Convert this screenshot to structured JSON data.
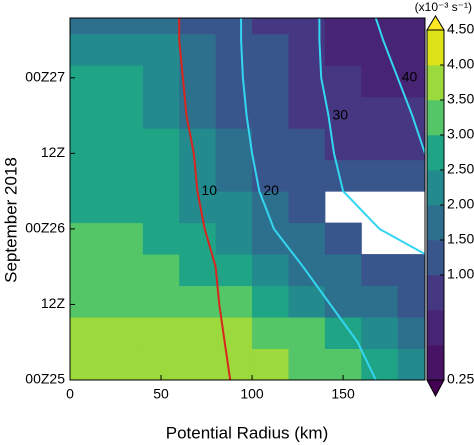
{
  "chart_data": {
    "type": "contour",
    "xlabel": "Potential Radius (km)",
    "ylabel": "September 2018",
    "colorbar_label": "(x10⁻³ s⁻¹)",
    "xlim": [
      0,
      195
    ],
    "xticks": [
      0,
      50,
      100,
      150
    ],
    "ylim": [
      0,
      57.5
    ],
    "yticks": [
      {
        "value": 0,
        "label": "00Z25"
      },
      {
        "value": 12,
        "label": "12Z"
      },
      {
        "value": 24,
        "label": "00Z26"
      },
      {
        "value": 36,
        "label": "12Z"
      },
      {
        "value": 48,
        "label": "00Z27"
      }
    ],
    "x_edges": [
      0,
      20,
      40,
      60,
      80,
      100,
      120,
      140,
      160,
      180,
      195
    ],
    "y_edges": [
      0,
      5,
      10,
      15,
      20,
      25,
      30,
      35,
      40,
      45,
      50,
      55,
      57.5
    ],
    "z": [
      [
        3.8,
        3.8,
        3.8,
        3.8,
        3.7,
        3.6,
        3.4,
        3.0,
        2.6,
        2.2
      ],
      [
        3.7,
        3.7,
        3.7,
        3.6,
        3.5,
        3.3,
        3.0,
        2.6,
        2.2,
        1.8
      ],
      [
        3.4,
        3.4,
        3.3,
        3.2,
        3.0,
        2.7,
        2.3,
        1.9,
        1.6,
        1.4
      ],
      [
        3.2,
        3.2,
        3.1,
        2.9,
        2.6,
        2.2,
        1.8,
        1.5,
        1.3,
        1.2
      ],
      [
        3.0,
        3.0,
        2.9,
        2.6,
        2.2,
        1.8,
        1.5,
        1.3,
        null,
        null
      ],
      [
        2.9,
        2.9,
        2.7,
        2.4,
        2.0,
        1.6,
        1.3,
        null,
        null,
        null
      ],
      [
        2.8,
        2.8,
        2.6,
        2.2,
        1.8,
        1.4,
        1.2,
        1.1,
        1.0,
        1.0
      ],
      [
        2.7,
        2.7,
        2.5,
        2.0,
        1.6,
        1.2,
        1.0,
        0.9,
        0.9,
        0.8
      ],
      [
        2.8,
        2.7,
        2.4,
        1.9,
        1.4,
        1.1,
        0.9,
        0.8,
        0.8,
        0.8
      ],
      [
        2.6,
        2.5,
        2.2,
        1.7,
        1.3,
        1.0,
        0.9,
        0.8,
        0.7,
        0.7
      ],
      [
        2.0,
        2.2,
        2.0,
        1.6,
        1.2,
        1.0,
        0.8,
        0.7,
        0.7,
        0.6
      ],
      [
        1.6,
        1.8,
        1.8,
        1.4,
        1.0,
        0.9,
        0.8,
        0.7,
        0.6,
        0.6
      ]
    ],
    "levels": [
      0.25,
      0.5,
      0.75,
      1,
      1.5,
      2,
      2.5,
      3,
      3.5,
      4,
      4.5
    ],
    "level_colors": [
      "#471365",
      "#482475",
      "#453781",
      "#39568c",
      "#2d708e",
      "#238a8d",
      "#20a486",
      "#55c667",
      "#9bd93c",
      "#dde318"
    ],
    "under_color": "#440154",
    "over_color": "#fde725",
    "colorbar_ticks": [
      0.25,
      {
        "value": 1,
        "label": "1.00"
      },
      {
        "value": 1.5,
        "label": "1.50"
      },
      {
        "value": 2,
        "label": "2.00"
      },
      {
        "value": 2.5,
        "label": "2.50"
      },
      {
        "value": 3,
        "label": "3.00"
      },
      {
        "value": 3.5,
        "label": "3.50"
      },
      {
        "value": 4,
        "label": "4.00"
      },
      {
        "value": 4.5,
        "label": "4.50"
      }
    ],
    "contours": [
      {
        "label": "10",
        "color": "#d7261e",
        "t": [
          0,
          6,
          12,
          18,
          24,
          30,
          36,
          42,
          48,
          54,
          57.5
        ],
        "x": [
          88,
          85,
          82,
          80,
          74,
          70,
          68,
          64,
          62,
          60,
          60
        ]
      },
      {
        "label": "20",
        "color": "#33d6f0",
        "t": [
          0,
          6,
          12,
          18,
          24,
          30,
          36,
          42,
          48,
          54,
          57.5
        ],
        "x": [
          168,
          158,
          143,
          128,
          112,
          104,
          100,
          97,
          95,
          94,
          94
        ]
      },
      {
        "label": "30",
        "color": "#33d6f0",
        "t": [
          20,
          24,
          30,
          36,
          42,
          48,
          54,
          57.5
        ],
        "x": [
          195,
          170,
          150,
          145,
          142,
          138,
          137,
          137
        ]
      },
      {
        "label": "40",
        "color": "#33d6f0",
        "t": [
          36,
          42,
          48,
          54,
          57.5
        ],
        "x": [
          195,
          188,
          180,
          172,
          168
        ]
      }
    ]
  }
}
